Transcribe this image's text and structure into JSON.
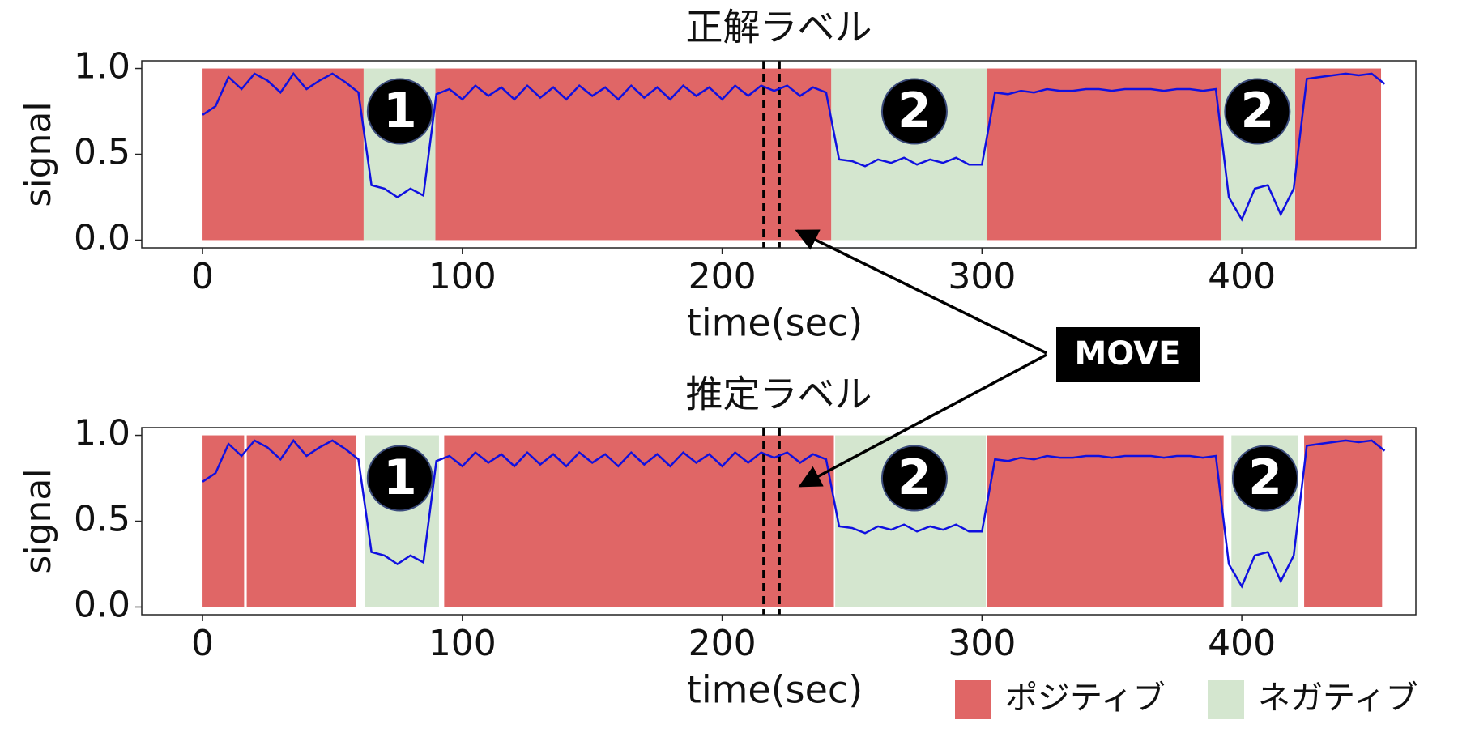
{
  "chart_data": [
    {
      "type": "line",
      "title": "正解ラベル",
      "xlabel": "time(sec)",
      "ylabel": "signal",
      "color": "#1010e0",
      "xlim": [
        -23.4,
        467
      ],
      "ylim": [
        -0.045,
        1.045
      ],
      "xticks": [
        0,
        100,
        200,
        300,
        400
      ],
      "yticks": [
        {
          "value": 0,
          "label": "0.0"
        },
        {
          "value": 0.5,
          "label": "0.5"
        },
        {
          "value": 1,
          "label": "1.0"
        }
      ],
      "x": [
        0,
        5,
        10,
        15,
        20,
        25,
        30,
        35,
        40,
        45,
        50,
        55,
        60,
        65,
        70,
        75,
        80,
        85,
        90,
        95,
        100,
        105,
        110,
        115,
        120,
        125,
        130,
        135,
        140,
        145,
        150,
        155,
        160,
        165,
        170,
        175,
        180,
        185,
        190,
        195,
        200,
        205,
        210,
        215,
        220,
        225,
        230,
        235,
        240,
        245,
        250,
        255,
        260,
        265,
        270,
        275,
        280,
        285,
        290,
        295,
        300,
        305,
        310,
        315,
        320,
        325,
        330,
        335,
        340,
        345,
        350,
        355,
        360,
        365,
        370,
        375,
        380,
        385,
        390,
        395,
        400,
        405,
        410,
        415,
        420,
        425,
        430,
        435,
        440,
        445,
        450,
        455
      ],
      "values": [
        0.73,
        0.78,
        0.95,
        0.88,
        0.97,
        0.93,
        0.86,
        0.97,
        0.88,
        0.93,
        0.97,
        0.92,
        0.86,
        0.32,
        0.3,
        0.25,
        0.3,
        0.26,
        0.85,
        0.88,
        0.82,
        0.9,
        0.84,
        0.89,
        0.82,
        0.9,
        0.83,
        0.89,
        0.82,
        0.9,
        0.84,
        0.89,
        0.82,
        0.9,
        0.83,
        0.89,
        0.82,
        0.9,
        0.84,
        0.89,
        0.82,
        0.9,
        0.84,
        0.9,
        0.87,
        0.9,
        0.84,
        0.89,
        0.86,
        0.47,
        0.46,
        0.43,
        0.47,
        0.45,
        0.48,
        0.44,
        0.47,
        0.45,
        0.48,
        0.44,
        0.44,
        0.86,
        0.85,
        0.87,
        0.86,
        0.88,
        0.87,
        0.87,
        0.88,
        0.88,
        0.87,
        0.88,
        0.88,
        0.88,
        0.87,
        0.88,
        0.88,
        0.87,
        0.88,
        0.25,
        0.12,
        0.3,
        0.32,
        0.15,
        0.3,
        0.94,
        0.95,
        0.96,
        0.97,
        0.96,
        0.97,
        0.91
      ],
      "regions": [
        {
          "color": "#e06666",
          "spans": [
            [
              0,
              62
            ],
            [
              89.6,
              242
            ],
            [
              302,
              392
            ],
            [
              420.5,
              453.6
            ]
          ]
        },
        {
          "color": "#d4e6cf",
          "spans": [
            [
              62,
              89.6
            ],
            [
              242,
              302
            ],
            [
              392,
              420.5
            ]
          ]
        }
      ],
      "vlines": [
        216,
        222
      ],
      "annotations": [
        {
          "text": "1",
          "x": 76,
          "y": 0.75
        },
        {
          "text": "2",
          "x": 274,
          "y": 0.75
        },
        {
          "text": "2",
          "x": 406,
          "y": 0.75
        }
      ]
    },
    {
      "type": "line",
      "title": "推定ラベル",
      "xlabel": "time(sec)",
      "ylabel": "signal",
      "color": "#1010e0",
      "xlim": [
        -23.4,
        467
      ],
      "ylim": [
        -0.045,
        1.045
      ],
      "xticks": [
        0,
        100,
        200,
        300,
        400
      ],
      "yticks": [
        {
          "value": 0,
          "label": "0.0"
        },
        {
          "value": 0.5,
          "label": "0.5"
        },
        {
          "value": 1,
          "label": "1.0"
        }
      ],
      "x": [
        0,
        5,
        10,
        15,
        20,
        25,
        30,
        35,
        40,
        45,
        50,
        55,
        60,
        65,
        70,
        75,
        80,
        85,
        90,
        95,
        100,
        105,
        110,
        115,
        120,
        125,
        130,
        135,
        140,
        145,
        150,
        155,
        160,
        165,
        170,
        175,
        180,
        185,
        190,
        195,
        200,
        205,
        210,
        215,
        220,
        225,
        230,
        235,
        240,
        245,
        250,
        255,
        260,
        265,
        270,
        275,
        280,
        285,
        290,
        295,
        300,
        305,
        310,
        315,
        320,
        325,
        330,
        335,
        340,
        345,
        350,
        355,
        360,
        365,
        370,
        375,
        380,
        385,
        390,
        395,
        400,
        405,
        410,
        415,
        420,
        425,
        430,
        435,
        440,
        445,
        450,
        455
      ],
      "values": [
        0.73,
        0.78,
        0.95,
        0.88,
        0.97,
        0.93,
        0.86,
        0.97,
        0.88,
        0.93,
        0.97,
        0.92,
        0.86,
        0.32,
        0.3,
        0.25,
        0.3,
        0.26,
        0.85,
        0.88,
        0.82,
        0.9,
        0.84,
        0.89,
        0.82,
        0.9,
        0.83,
        0.89,
        0.82,
        0.9,
        0.84,
        0.89,
        0.82,
        0.9,
        0.83,
        0.89,
        0.82,
        0.9,
        0.84,
        0.89,
        0.82,
        0.9,
        0.84,
        0.9,
        0.87,
        0.9,
        0.84,
        0.89,
        0.86,
        0.47,
        0.46,
        0.43,
        0.47,
        0.45,
        0.48,
        0.44,
        0.47,
        0.45,
        0.48,
        0.44,
        0.44,
        0.86,
        0.85,
        0.87,
        0.86,
        0.88,
        0.87,
        0.87,
        0.88,
        0.88,
        0.87,
        0.88,
        0.88,
        0.88,
        0.87,
        0.88,
        0.88,
        0.87,
        0.88,
        0.25,
        0.12,
        0.3,
        0.32,
        0.15,
        0.3,
        0.94,
        0.95,
        0.96,
        0.97,
        0.96,
        0.97,
        0.91
      ],
      "regions": [
        {
          "name": "ポジティブ",
          "color": "#e06666",
          "spans": [
            [
              0,
              16
            ],
            [
              17,
              59
            ],
            [
              93,
              243
            ],
            [
              302,
              393
            ],
            [
              424,
              454
            ]
          ]
        },
        {
          "name": "ネガティブ",
          "color": "#d4e6cf",
          "spans": [
            [
              62.5,
              91
            ],
            [
              243.5,
              301.5
            ],
            [
              396,
              421.5
            ]
          ]
        }
      ],
      "vlines": [
        216,
        222
      ],
      "annotations": [
        {
          "text": "1",
          "x": 76,
          "y": 0.75
        },
        {
          "text": "2",
          "x": 274,
          "y": 0.75
        },
        {
          "text": "2",
          "x": 409,
          "y": 0.75
        }
      ],
      "legend": "lower right"
    }
  ],
  "annotation": {
    "text": "MOVE"
  }
}
